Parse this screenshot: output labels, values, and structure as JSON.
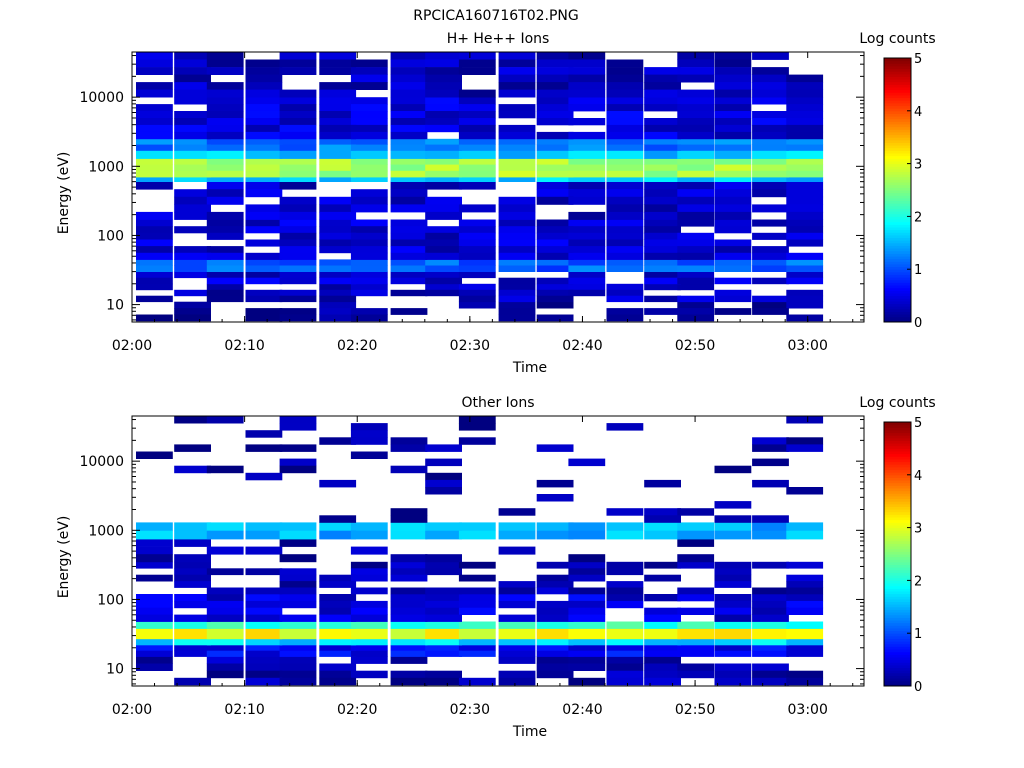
{
  "figure": {
    "title": "RPCICA160716T02.PNG"
  },
  "chart_data": [
    {
      "type": "heatmap",
      "title": "H+ He++ Ions",
      "xlabel": "Time",
      "ylabel": "Energy (eV)",
      "x_tick_labels": [
        "02:00",
        "02:10",
        "02:20",
        "02:30",
        "02:40",
        "02:50",
        "03:00"
      ],
      "x_range": [
        "02:00",
        "03:05"
      ],
      "y_scale": "log",
      "y_range": [
        5.6,
        45000
      ],
      "y_tick_labels": [
        "10",
        "100",
        "1000",
        "10000"
      ],
      "colorbar": {
        "label": "Log counts",
        "range": [
          0,
          5
        ],
        "tick_labels": [
          "0",
          "1",
          "2",
          "3",
          "4",
          "5"
        ]
      },
      "time_bins": 19,
      "bands": [
        {
          "energy_range": [
            5.8,
            11
          ],
          "log_counts": 0.1,
          "coverage": 0.55
        },
        {
          "energy_range": [
            11,
            20
          ],
          "log_counts": 0.3,
          "coverage": 0.7
        },
        {
          "energy_range": [
            20,
            30
          ],
          "log_counts": 0.4,
          "coverage": 0.85
        },
        {
          "energy_range": [
            30,
            45
          ],
          "log_counts": 1.1,
          "coverage": 1.0
        },
        {
          "energy_range": [
            45,
            170
          ],
          "log_counts": 0.4,
          "coverage": 0.85
        },
        {
          "energy_range": [
            170,
            600
          ],
          "log_counts": 0.35,
          "coverage": 0.8
        },
        {
          "energy_range": [
            600,
            700
          ],
          "log_counts": 1.6,
          "coverage": 1.0
        },
        {
          "energy_range": [
            700,
            1300
          ],
          "log_counts": 2.7,
          "coverage": 1.0
        },
        {
          "energy_range": [
            1300,
            1700
          ],
          "log_counts": 1.6,
          "coverage": 1.0
        },
        {
          "energy_range": [
            1700,
            2500
          ],
          "log_counts": 1.2,
          "coverage": 1.0
        },
        {
          "energy_range": [
            2500,
            10000
          ],
          "log_counts": 0.45,
          "coverage": 0.9
        },
        {
          "energy_range": [
            10000,
            45000
          ],
          "log_counts": 0.3,
          "coverage": 0.85
        }
      ]
    },
    {
      "type": "heatmap",
      "title": "Other Ions",
      "xlabel": "Time",
      "ylabel": "Energy (eV)",
      "x_tick_labels": [
        "02:00",
        "02:10",
        "02:20",
        "02:30",
        "02:40",
        "02:50",
        "03:00"
      ],
      "x_range": [
        "02:00",
        "03:05"
      ],
      "y_scale": "log",
      "y_range": [
        5.6,
        45000
      ],
      "y_tick_labels": [
        "10",
        "100",
        "1000",
        "10000"
      ],
      "colorbar": {
        "label": "Log counts",
        "range": [
          0,
          5
        ],
        "tick_labels": [
          "0",
          "1",
          "2",
          "3",
          "4",
          "5"
        ]
      },
      "time_bins": 19,
      "bands": [
        {
          "energy_range": [
            5.8,
            15
          ],
          "log_counts": 0.2,
          "coverage": 0.7
        },
        {
          "energy_range": [
            15,
            22
          ],
          "log_counts": 0.6,
          "coverage": 1.0
        },
        {
          "energy_range": [
            22,
            27
          ],
          "log_counts": 1.7,
          "coverage": 1.0
        },
        {
          "energy_range": [
            27,
            38
          ],
          "log_counts": 3.1,
          "coverage": 1.0
        },
        {
          "energy_range": [
            38,
            48
          ],
          "log_counts": 2.1,
          "coverage": 1.0
        },
        {
          "energy_range": [
            48,
            120
          ],
          "log_counts": 0.45,
          "coverage": 0.85
        },
        {
          "energy_range": [
            120,
            350
          ],
          "log_counts": 0.25,
          "coverage": 0.55
        },
        {
          "energy_range": [
            350,
            750
          ],
          "log_counts": 0.2,
          "coverage": 0.35
        },
        {
          "energy_range": [
            750,
            1300
          ],
          "log_counts": 1.5,
          "coverage": 1.0
        },
        {
          "energy_range": [
            1300,
            45000
          ],
          "log_counts": 0.15,
          "coverage": 0.2
        }
      ]
    }
  ]
}
